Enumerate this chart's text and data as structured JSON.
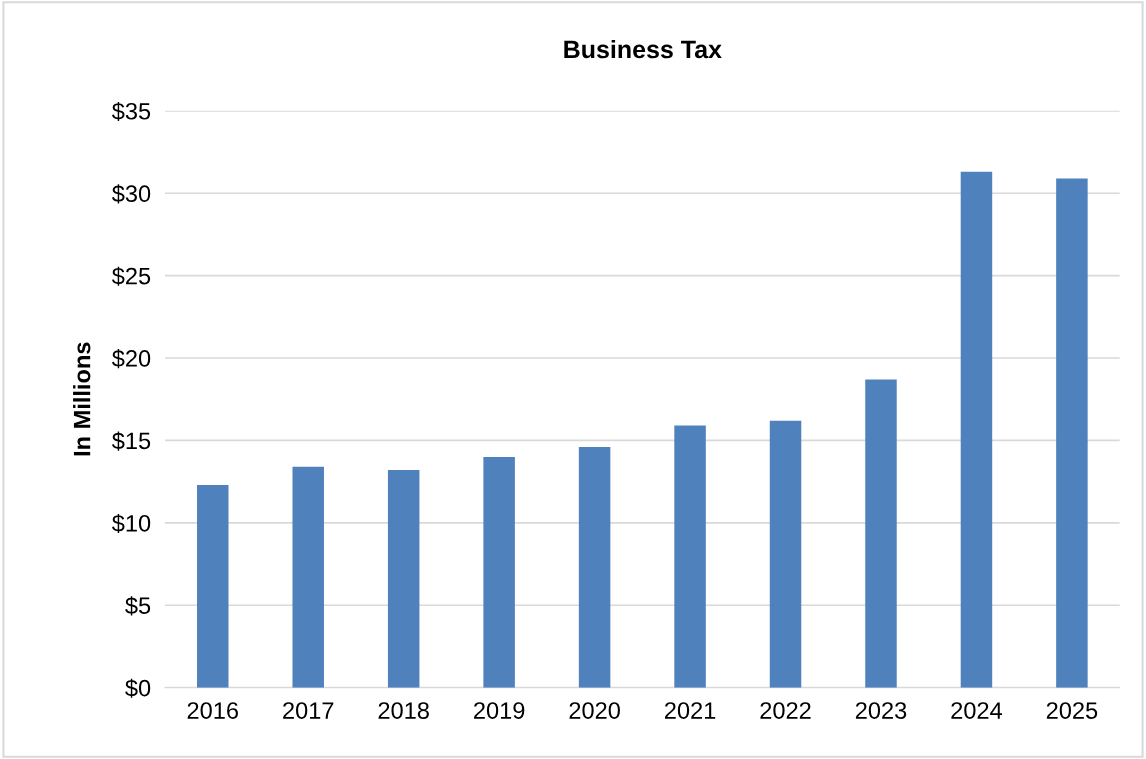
{
  "chart_data": {
    "type": "bar",
    "title": "Business Tax",
    "ylabel": "In Millions",
    "categories": [
      "2016",
      "2017",
      "2018",
      "2019",
      "2020",
      "2021",
      "2022",
      "2023",
      "2024",
      "2025"
    ],
    "values": [
      12.3,
      13.4,
      13.2,
      14.0,
      14.6,
      15.9,
      16.2,
      18.7,
      31.3,
      30.9
    ],
    "color": "#4f81bd",
    "ylim": [
      0,
      35
    ],
    "yticks": [
      {
        "value": 0,
        "label": "$0"
      },
      {
        "value": 5,
        "label": "$5"
      },
      {
        "value": 10,
        "label": "$10"
      },
      {
        "value": 15,
        "label": "$15"
      },
      {
        "value": 20,
        "label": "$20"
      },
      {
        "value": 25,
        "label": "$25"
      },
      {
        "value": 30,
        "label": "$30"
      },
      {
        "value": 35,
        "label": "$35"
      }
    ],
    "grid": "y",
    "legend": false
  }
}
